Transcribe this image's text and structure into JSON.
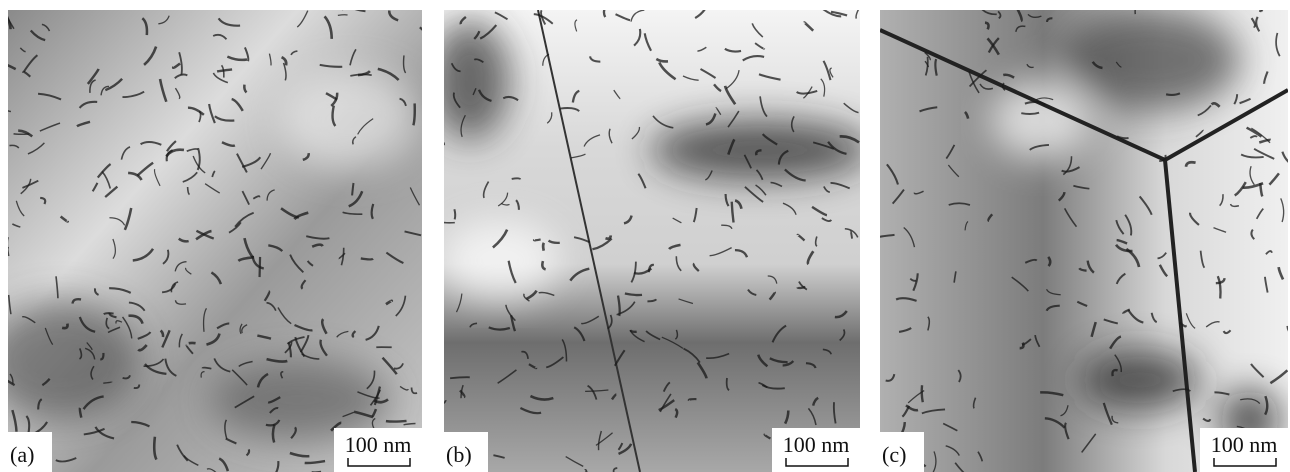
{
  "panels": [
    {
      "label": "(a)",
      "scale_bar": "100 nm"
    },
    {
      "label": "(b)",
      "scale_bar": "100 nm"
    },
    {
      "label": "(c)",
      "scale_bar": "100 nm"
    }
  ]
}
